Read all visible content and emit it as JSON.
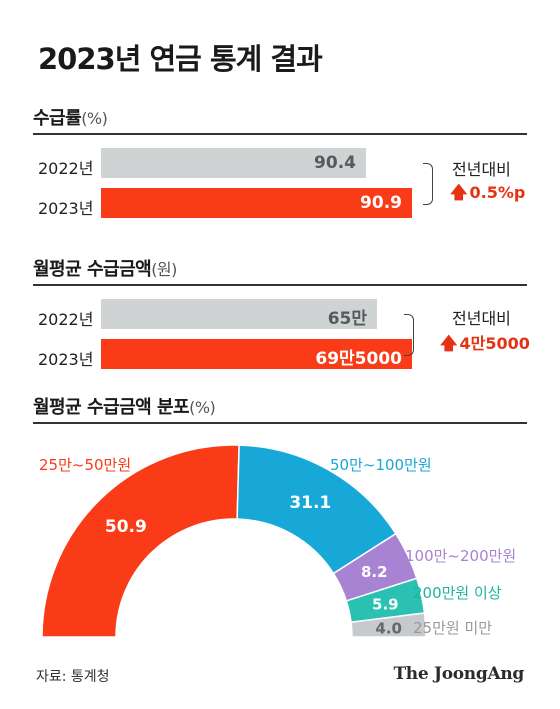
{
  "title": "2023년 연금 통계 결과",
  "section1": {
    "title": "수급률",
    "unit": "(%)"
  },
  "section2": {
    "title": "월평균 수급금액",
    "unit": "(원)"
  },
  "section3": {
    "title": "월평균 수급금액 분포",
    "unit": "(%)"
  },
  "compare_label": "전년대비",
  "source": "자료: 통계청",
  "logo": "The JoongAng",
  "colors": {
    "accent_red": "#f93b18",
    "gray_bar": "#cfd3d4",
    "blue": "#17a8d8",
    "purple": "#a883d3",
    "teal": "#2bc1b2",
    "light_gray": "#c6cacc"
  },
  "chart_data": [
    {
      "type": "bar",
      "title": "수급률",
      "unit": "(%)",
      "categories": [
        "2022년",
        "2023년"
      ],
      "values": [
        90.4,
        90.9
      ],
      "labels": [
        "90.4",
        "90.9"
      ],
      "change": "0.5%p"
    },
    {
      "type": "bar",
      "title": "월평균 수급금액",
      "unit": "(원)",
      "categories": [
        "2022년",
        "2023년"
      ],
      "values": [
        650000,
        695000
      ],
      "labels": [
        "65만",
        "69만5000"
      ],
      "change": "4만5000"
    },
    {
      "type": "pie",
      "title": "월평균 수급금액 분포",
      "unit": "(%)",
      "categories": [
        "25만~50만원",
        "50만~100만원",
        "100만~200만원",
        "200만원 이상",
        "25만원 미만"
      ],
      "values": [
        50.9,
        31.1,
        8.2,
        5.9,
        4.0
      ],
      "labels": [
        "50.9",
        "31.1",
        "8.2",
        "5.9",
        "4.0"
      ],
      "colors": [
        "#f93b18",
        "#17a8d8",
        "#a883d3",
        "#2bc1b2",
        "#c6cacc"
      ],
      "label_colors": [
        "#f93b18",
        "#17a8d8",
        "#a883d3",
        "#1db3a4",
        "#999999"
      ]
    }
  ]
}
